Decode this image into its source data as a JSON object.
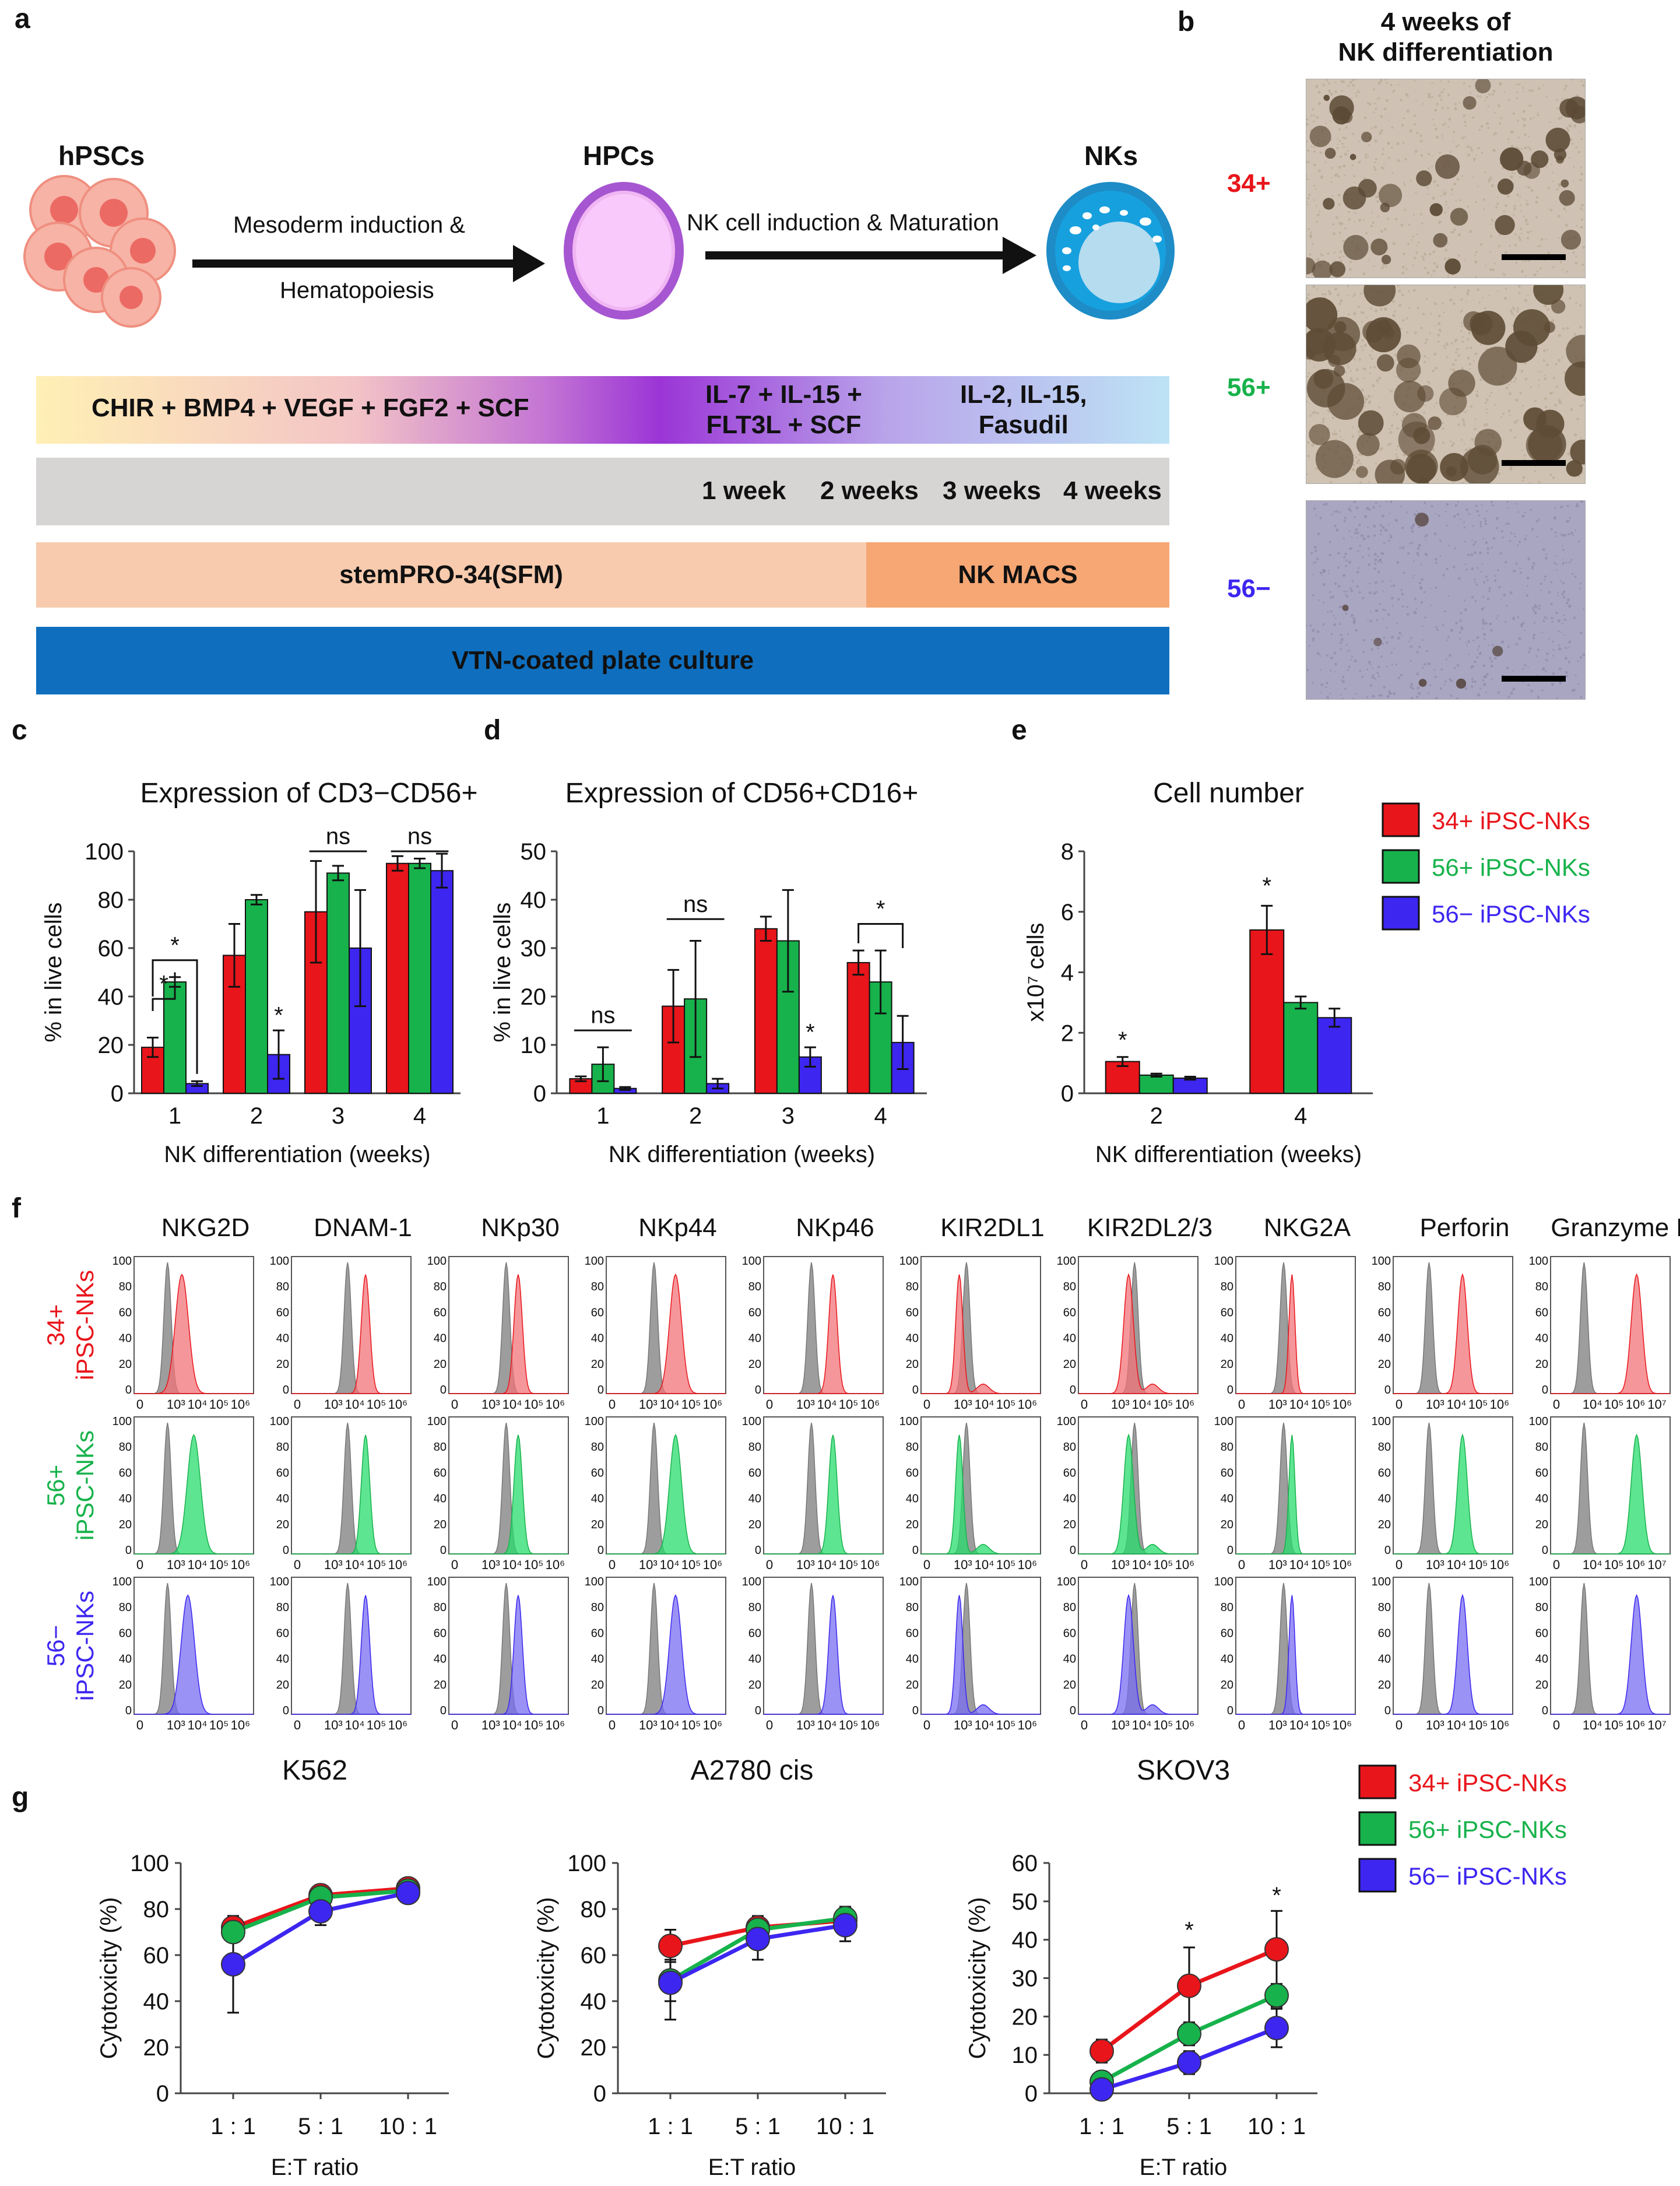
{
  "panels": {
    "a": "a",
    "b": "b",
    "c": "c",
    "d": "d",
    "e": "e",
    "f": "f",
    "g": "g"
  },
  "panel_a": {
    "stages": [
      "hPSCs",
      "HPCs",
      "NKs"
    ],
    "arrow1": [
      "Mesoderm induction &",
      "Hematopoiesis"
    ],
    "arrow2": "NK cell induction & Maturation",
    "factors1": "CHIR + BMP4 + VEGF + FGF2 + SCF",
    "factors2": [
      "IL-7 + IL-15 +",
      "FLT3L + SCF"
    ],
    "factors3": [
      "IL-2, IL-15,",
      "Fasudil"
    ],
    "weeks": [
      "1 week",
      "2 weeks",
      "3 weeks",
      "4 weeks"
    ],
    "medium1": "stemPRO-34(SFM)",
    "medium2": "NK MACS",
    "plate": "VTN-coated plate culture"
  },
  "panel_b": {
    "title": [
      "4 weeks of",
      "NK differentiation"
    ],
    "rows": [
      "34+",
      "56+",
      "56−"
    ]
  },
  "colors": {
    "red": "#e8151b",
    "green": "#17b24b",
    "blue": "#3d26f0",
    "gray": "#8c8c8c"
  },
  "legend": [
    "34+ iPSC-NKs",
    "56+ iPSC-NKs",
    "56− iPSC-NKs"
  ],
  "chart_data": [
    {
      "id": "c",
      "type": "bar",
      "title": "Expression of CD3−CD56+",
      "xlabel": "NK differentiation (weeks)",
      "ylabel": "% in live cells",
      "categories": [
        "1",
        "2",
        "3",
        "4"
      ],
      "ylim": [
        0,
        100
      ],
      "yticks": [
        0,
        20,
        40,
        60,
        80,
        100
      ],
      "series": [
        {
          "name": "34+ iPSC-NKs",
          "values": [
            19,
            57,
            75,
            95
          ],
          "err": [
            4,
            13,
            21,
            3
          ]
        },
        {
          "name": "56+ iPSC-NKs",
          "values": [
            46,
            80,
            91,
            95
          ],
          "err": [
            2,
            2,
            3,
            2
          ]
        },
        {
          "name": "56− iPSC-NKs",
          "values": [
            4,
            16,
            60,
            92
          ],
          "err": [
            1,
            10,
            24,
            7
          ]
        }
      ],
      "annotations": [
        "*",
        "*",
        "*",
        "ns",
        "ns"
      ]
    },
    {
      "id": "d",
      "type": "bar",
      "title": "Expression of CD56+CD16+",
      "xlabel": "NK differentiation (weeks)",
      "ylabel": "% in live cells",
      "categories": [
        "1",
        "2",
        "3",
        "4"
      ],
      "ylim": [
        0,
        50
      ],
      "yticks": [
        0,
        10,
        20,
        30,
        40,
        50
      ],
      "series": [
        {
          "name": "34+ iPSC-NKs",
          "values": [
            3,
            18,
            34,
            27
          ],
          "err": [
            0.5,
            7.5,
            2.5,
            2.5
          ]
        },
        {
          "name": "56+ iPSC-NKs",
          "values": [
            6,
            19.5,
            31.5,
            23
          ],
          "err": [
            3.5,
            12,
            10.5,
            6.5
          ]
        },
        {
          "name": "56− iPSC-NKs",
          "values": [
            1,
            2,
            7.5,
            10.5
          ],
          "err": [
            0.3,
            1,
            2,
            5.5
          ]
        }
      ],
      "annotations": [
        "ns",
        "ns",
        "*",
        "*"
      ]
    },
    {
      "id": "e",
      "type": "bar",
      "title": "Cell number",
      "xlabel": "NK differentiation (weeks)",
      "ylabel": "x10⁷ cells",
      "categories": [
        "2",
        "4"
      ],
      "ylim": [
        0,
        8
      ],
      "yticks": [
        0,
        2,
        4,
        6,
        8
      ],
      "series": [
        {
          "name": "34+ iPSC-NKs",
          "values": [
            1.05,
            5.4
          ],
          "err": [
            0.15,
            0.8
          ]
        },
        {
          "name": "56+ iPSC-NKs",
          "values": [
            0.6,
            3.0
          ],
          "err": [
            0.05,
            0.2
          ]
        },
        {
          "name": "56− iPSC-NKs",
          "values": [
            0.5,
            2.5
          ],
          "err": [
            0.05,
            0.3
          ]
        }
      ],
      "annotations": [
        "*",
        "*"
      ]
    },
    {
      "id": "f",
      "type": "histogram",
      "columns": [
        "NKG2D",
        "DNAM-1",
        "NKp30",
        "NKp44",
        "NKp46",
        "KIR2DL1",
        "KIR2DL2/3",
        "NKG2A",
        "Perforin",
        "Granzyme B"
      ],
      "rows": [
        "34+\niPSC-NKs",
        "56+\niPSC-NKs",
        "56−\niPSC-NKs"
      ],
      "row_lines": [
        [
          "34+",
          "iPSC-NKs"
        ],
        [
          "56+",
          "iPSC-NKs"
        ],
        [
          "56−",
          "iPSC-NKs"
        ]
      ],
      "yticks": [
        "100",
        "80",
        "60",
        "40",
        "20",
        "0"
      ],
      "xticks": [
        "0",
        "10³",
        "10⁴",
        "10⁵",
        "10⁶"
      ],
      "xticks_last": [
        "0",
        "10⁴",
        "10⁵",
        "10⁶",
        "10⁷"
      ]
    },
    {
      "id": "g1",
      "type": "line",
      "title": "K562",
      "xlabel": "E:T ratio",
      "ylabel": "Cytotoxicity (%)",
      "categories": [
        "1 : 1",
        "5 : 1",
        "10 : 1"
      ],
      "ylim": [
        0,
        100
      ],
      "yticks": [
        0,
        20,
        40,
        60,
        80,
        100
      ],
      "series": [
        {
          "name": "34+ iPSC-NKs",
          "values": [
            72,
            86,
            89
          ],
          "err": [
            5,
            3,
            1
          ]
        },
        {
          "name": "56+ iPSC-NKs",
          "values": [
            70,
            85,
            88
          ],
          "err": [
            4,
            3,
            1
          ]
        },
        {
          "name": "56− iPSC-NKs",
          "values": [
            56,
            79,
            87
          ],
          "err": [
            21,
            6,
            2
          ]
        }
      ]
    },
    {
      "id": "g2",
      "type": "line",
      "title": "A2780 cis",
      "xlabel": "E:T ratio",
      "ylabel": "Cytotoxicity (%)",
      "categories": [
        "1 : 1",
        "5 : 1",
        "10 : 1"
      ],
      "ylim": [
        0,
        100
      ],
      "yticks": [
        0,
        20,
        40,
        60,
        80,
        100
      ],
      "series": [
        {
          "name": "34+ iPSC-NKs",
          "values": [
            64,
            72,
            75
          ],
          "err": [
            7,
            5,
            5
          ]
        },
        {
          "name": "56+ iPSC-NKs",
          "values": [
            49,
            71,
            76
          ],
          "err": [
            9,
            5,
            5
          ]
        },
        {
          "name": "56− iPSC-NKs",
          "values": [
            48,
            67,
            73
          ],
          "err": [
            16,
            9,
            7
          ]
        }
      ]
    },
    {
      "id": "g3",
      "type": "line",
      "title": "SKOV3",
      "xlabel": "E:T ratio",
      "ylabel": "Cytotoxicity (%)",
      "categories": [
        "1 : 1",
        "5 : 1",
        "10 : 1"
      ],
      "ylim": [
        0,
        60
      ],
      "yticks": [
        0,
        10,
        20,
        30,
        40,
        50,
        60
      ],
      "series": [
        {
          "name": "34+ iPSC-NKs",
          "values": [
            11,
            28,
            37.5
          ],
          "err": [
            3,
            10,
            10
          ]
        },
        {
          "name": "56+ iPSC-NKs",
          "values": [
            3,
            15.5,
            25.5
          ],
          "err": [
            1,
            3,
            3
          ]
        },
        {
          "name": "56− iPSC-NKs",
          "values": [
            1,
            8,
            17
          ],
          "err": [
            0.5,
            3,
            5
          ]
        }
      ],
      "annotations": [
        "*",
        "*"
      ]
    }
  ]
}
